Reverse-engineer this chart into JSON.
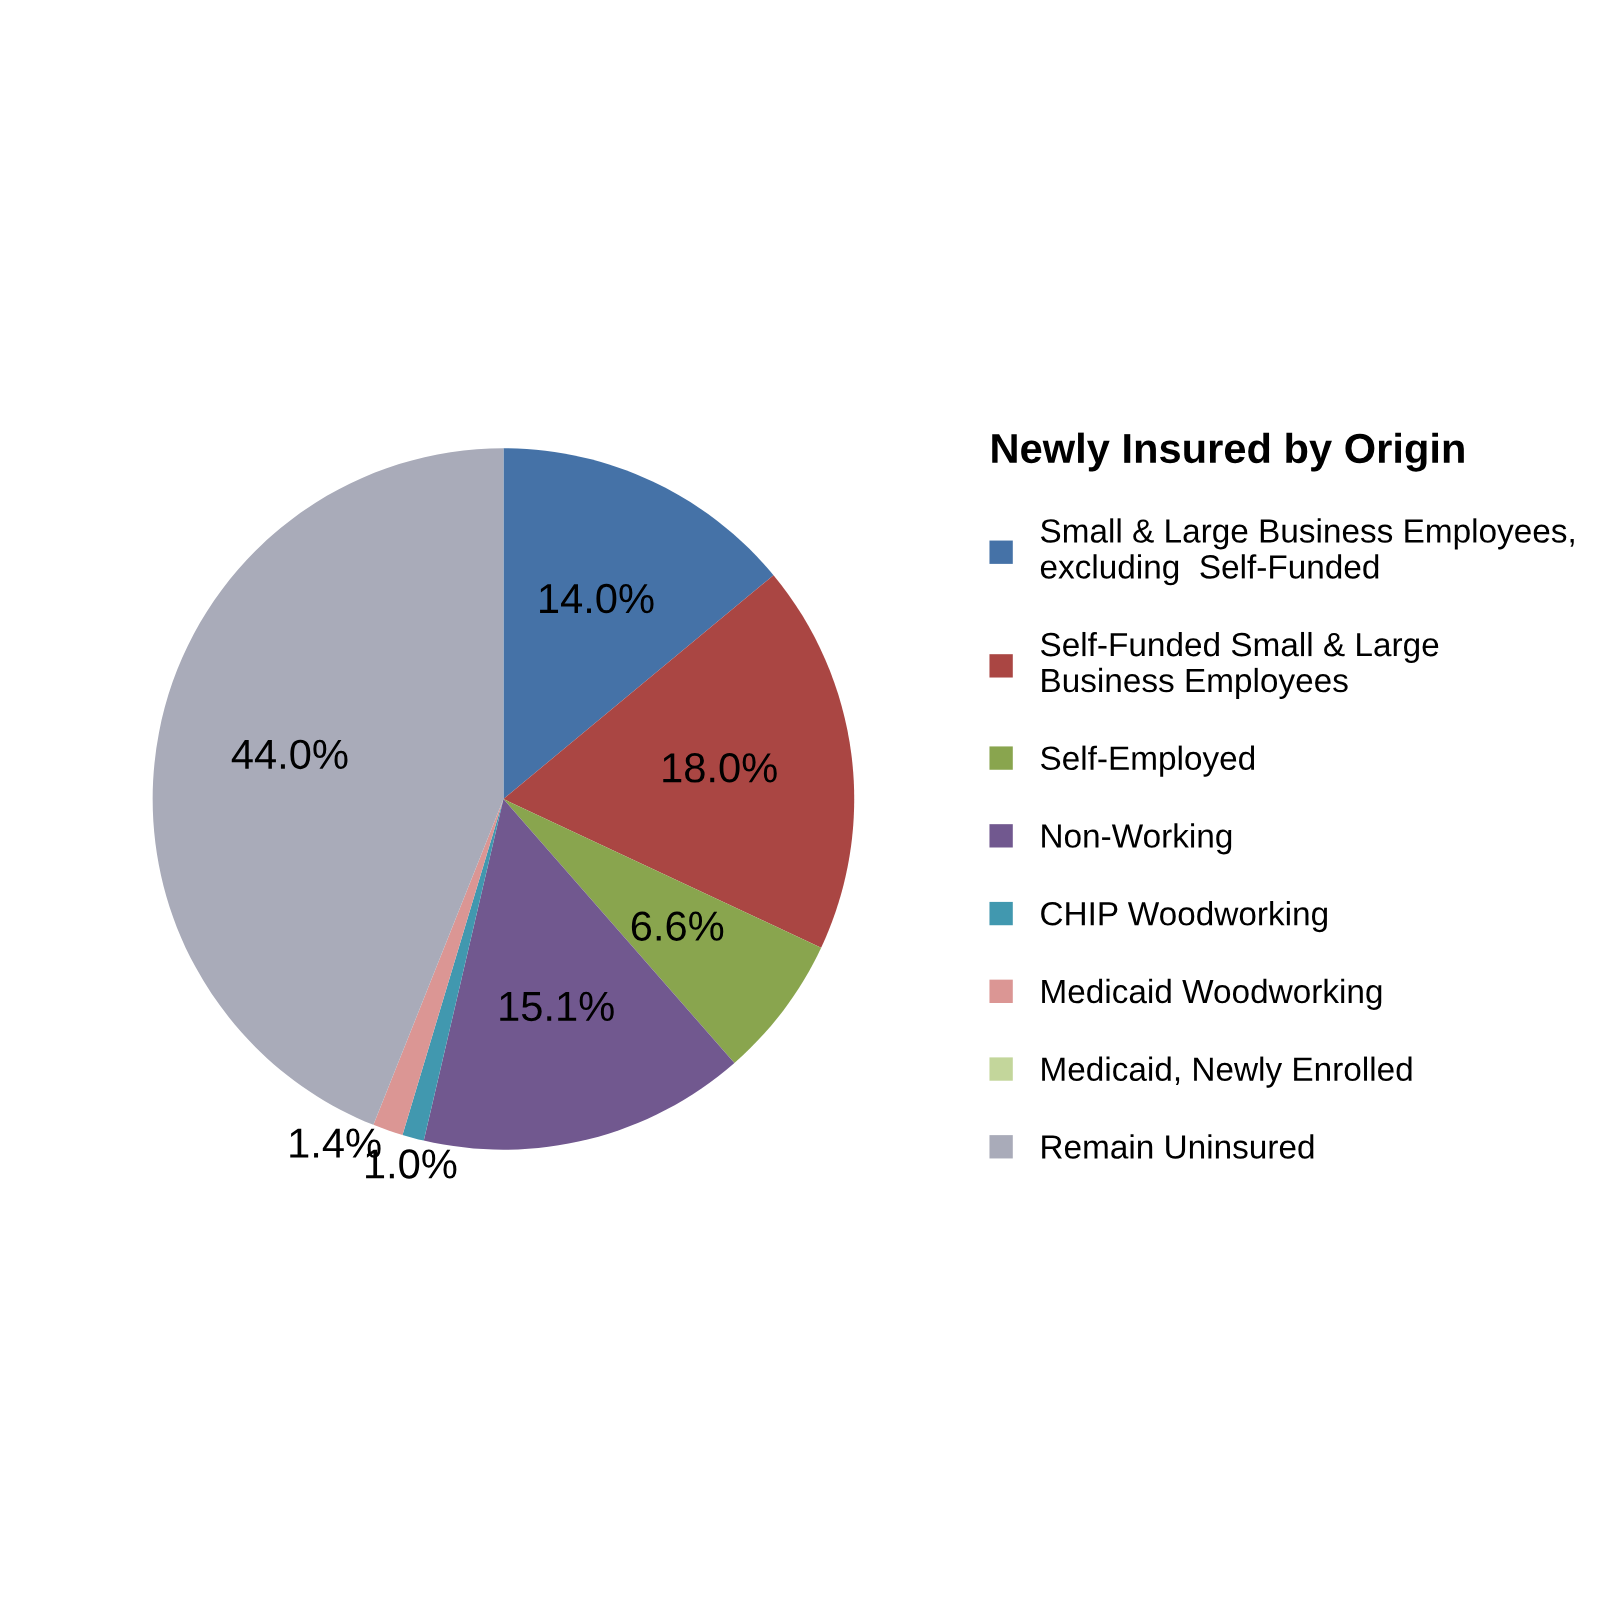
{
  "chart_data": {
    "type": "pie",
    "categories": [
      "Small & Large Business Employees,\nexcluding  Self-Funded",
      "Self-Funded Small & Large\nBusiness Employees",
      "Self-Employed",
      "Non-Working",
      "CHIP Woodworking",
      "Medicaid Woodworking",
      "Medicaid, Newly Enrolled",
      "Remain Uninsured"
    ],
    "values": [
      14.0,
      18.0,
      6.6,
      15.1,
      1.0,
      1.4,
      0,
      44.0
    ],
    "value_labels": [
      "14.0%",
      "18.0%",
      "6.6%",
      "15.1%",
      "1.0%",
      "1.4%",
      null,
      "44.0%"
    ],
    "colors": [
      "#4572a7",
      "#aa4643",
      "#89a54e",
      "#71588f",
      "#4198af",
      "#db9694",
      "#c3d69b",
      "#a9abb9"
    ],
    "legend_title": "Newly Insured by Origin",
    "legend": "right"
  }
}
